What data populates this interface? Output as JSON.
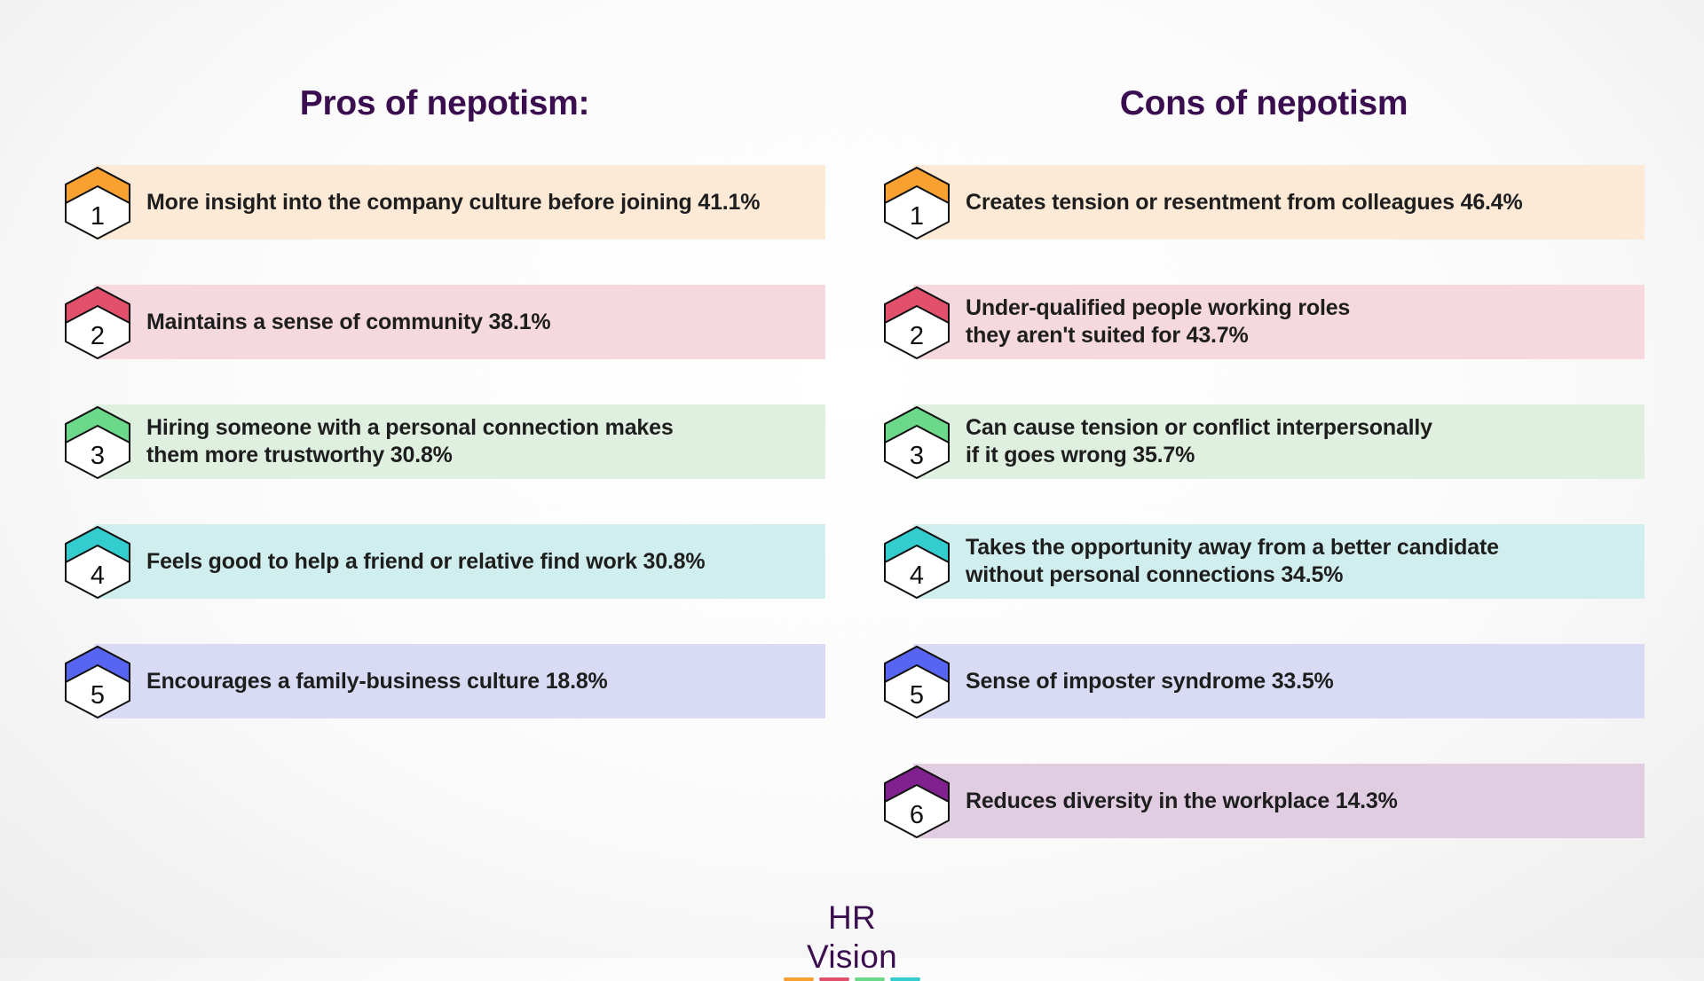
{
  "pros": {
    "title": "Pros of nepotism:",
    "items": [
      {
        "number": "1",
        "text": "More insight into the company culture before joining 41.1%",
        "hex_color": "#f9a130",
        "bar_color": "#fce9d6"
      },
      {
        "number": "2",
        "text": "Maintains a sense of community 38.1%",
        "hex_color": "#e3506c",
        "bar_color": "#f5d9de"
      },
      {
        "number": "3",
        "text": "Hiring someone with a personal connection makes\nthem more trustworthy 30.8%",
        "hex_color": "#6bd88a",
        "bar_color": "#dff0e0"
      },
      {
        "number": "4",
        "text": "Feels good to help a friend or relative find work 30.8%",
        "hex_color": "#33cccf",
        "bar_color": "#d1eeee"
      },
      {
        "number": "5",
        "text": "Encourages a family-business culture 18.8%",
        "hex_color": "#5865f2",
        "bar_color": "#d9dbf4"
      }
    ]
  },
  "cons": {
    "title": "Cons of nepotism",
    "items": [
      {
        "number": "1",
        "text": "Creates tension or resentment from colleagues 46.4%",
        "hex_color": "#f9a130",
        "bar_color": "#fce9d6"
      },
      {
        "number": "2",
        "text": "Under-qualified people working roles\nthey aren't suited for 43.7%",
        "hex_color": "#e3506c",
        "bar_color": "#f5d9de"
      },
      {
        "number": "3",
        "text": "Can cause tension or conflict interpersonally\nif it goes wrong 35.7%",
        "hex_color": "#6bd88a",
        "bar_color": "#dff0e0"
      },
      {
        "number": "4",
        "text": "Takes the opportunity away from a better candidate\nwithout personal connections 34.5%",
        "hex_color": "#33cccf",
        "bar_color": "#d1eeee"
      },
      {
        "number": "5",
        "text": "Sense of imposter syndrome 33.5%",
        "hex_color": "#5865f2",
        "bar_color": "#d9dbf4"
      },
      {
        "number": "6",
        "text": "Reduces diversity in the workplace 14.3%",
        "hex_color": "#81208f",
        "bar_color": "#e1cde2"
      }
    ]
  },
  "brand": {
    "name": "HR Vision",
    "underline_colors": [
      "#f9a130",
      "#e3506c",
      "#6bd88a",
      "#33cccf"
    ]
  }
}
